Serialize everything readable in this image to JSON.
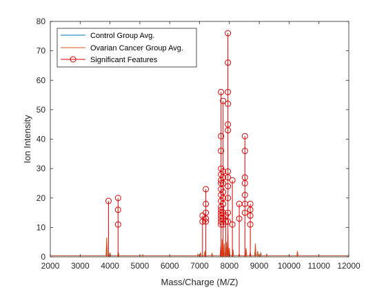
{
  "chart_data": {
    "type": "line",
    "xlabel": "Mass/Charge (M/Z)",
    "ylabel": "Ion Intensity",
    "xlim": [
      2000,
      12000
    ],
    "ylim": [
      0,
      80
    ],
    "xticks": [
      2000,
      3000,
      4000,
      5000,
      6000,
      7000,
      8000,
      9000,
      10000,
      11000,
      12000
    ],
    "yticks": [
      0,
      10,
      20,
      30,
      40,
      50,
      60,
      70,
      80
    ],
    "grid": false,
    "legend_position": "top-left",
    "series": [
      {
        "name": "Control Group Avg.",
        "color": "#0072BD",
        "peaks": [
          [
            3890,
            5.5
          ],
          [
            4000,
            1.2
          ],
          [
            4280,
            1.0
          ],
          [
            7030,
            1.2
          ],
          [
            7180,
            1.5
          ],
          [
            7420,
            1.0
          ],
          [
            7710,
            3.0
          ],
          [
            7760,
            4.5
          ],
          [
            7830,
            3.5
          ],
          [
            7900,
            4.0
          ],
          [
            7950,
            3.5
          ],
          [
            8000,
            2.5
          ],
          [
            8120,
            2.0
          ],
          [
            8560,
            2.5
          ],
          [
            8700,
            1.0
          ],
          [
            8870,
            4.0
          ],
          [
            9050,
            1.0
          ],
          [
            10280,
            1.5
          ]
        ]
      },
      {
        "name": "Ovarian Cancer Group Avg.",
        "color": "#D95319",
        "peaks": [
          [
            3890,
            6.5
          ],
          [
            4000,
            1.5
          ],
          [
            4280,
            1.5
          ],
          [
            5100,
            0.8
          ],
          [
            6950,
            1.0
          ],
          [
            7030,
            1.5
          ],
          [
            7180,
            2.0
          ],
          [
            7420,
            1.2
          ],
          [
            7710,
            3.5
          ],
          [
            7760,
            6.0
          ],
          [
            7830,
            4.5
          ],
          [
            7900,
            5.0
          ],
          [
            7950,
            7.5
          ],
          [
            8000,
            3.0
          ],
          [
            8120,
            2.5
          ],
          [
            8330,
            1.0
          ],
          [
            8560,
            3.0
          ],
          [
            8700,
            1.5
          ],
          [
            8870,
            4.5
          ],
          [
            8950,
            2.0
          ],
          [
            9050,
            1.5
          ],
          [
            9250,
            1.0
          ],
          [
            10280,
            2.0
          ]
        ]
      }
    ],
    "significant_features": {
      "name": "Significant Features",
      "color": "#E00000",
      "lines": [
        {
          "x": 3950,
          "y": [
            19
          ]
        },
        {
          "x": 4270,
          "y": [
            20,
            16,
            11
          ]
        },
        {
          "x": 7100,
          "y": [
            14,
            12
          ]
        },
        {
          "x": 7210,
          "y": [
            23,
            18,
            15,
            13,
            12
          ]
        },
        {
          "x": 7720,
          "y": [
            56,
            41,
            36,
            30,
            28,
            26,
            25,
            23,
            21,
            19,
            17,
            16,
            15,
            14,
            13,
            12,
            11
          ]
        },
        {
          "x": 7790,
          "y": [
            53,
            29,
            27,
            25,
            22,
            20,
            18,
            15,
            13,
            11
          ]
        },
        {
          "x": 7880,
          "y": [
            14,
            12
          ]
        },
        {
          "x": 7950,
          "y": [
            76,
            66,
            56,
            52,
            45,
            43,
            29,
            27,
            24,
            20,
            15,
            12
          ]
        },
        {
          "x": 8100,
          "y": [
            26,
            11
          ]
        },
        {
          "x": 8330,
          "y": [
            18,
            13
          ]
        },
        {
          "x": 8520,
          "y": [
            41,
            36,
            27,
            25,
            21,
            18,
            15
          ]
        },
        {
          "x": 8700,
          "y": [
            18,
            16,
            14,
            11
          ]
        }
      ]
    }
  }
}
